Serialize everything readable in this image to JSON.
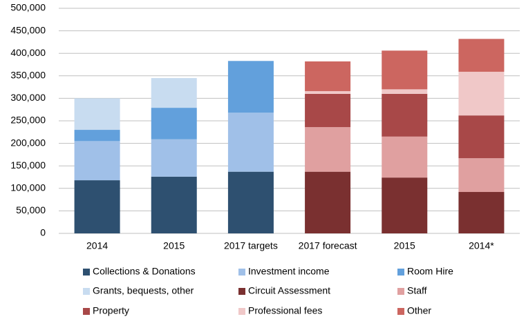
{
  "chart_data": {
    "type": "stacked_bar",
    "categories": [
      "2014",
      "2015",
      "2017 targets",
      "2017 forecast",
      "2015",
      "2014*"
    ],
    "series": [
      {
        "name": "Collections & Donations",
        "color": "#2e5070",
        "values": [
          118000,
          126000,
          137000,
          null,
          null,
          null
        ]
      },
      {
        "name": "Investment income",
        "color": "#a0c0e8",
        "values": [
          87000,
          83000,
          131000,
          null,
          null,
          null
        ]
      },
      {
        "name": "Room Hire",
        "color": "#62a0dc",
        "values": [
          25000,
          70000,
          115000,
          null,
          null,
          null
        ]
      },
      {
        "name": "Grants, bequests, other",
        "color": "#c8dcf0",
        "values": [
          70000,
          66000,
          null,
          null,
          null,
          null
        ]
      },
      {
        "name": "Circuit Assessment",
        "color": "#7a3030",
        "values": [
          null,
          null,
          null,
          137000,
          124000,
          92000
        ]
      },
      {
        "name": "Staff",
        "color": "#e0a0a0",
        "values": [
          null,
          null,
          null,
          99000,
          91000,
          75000
        ]
      },
      {
        "name": "Property",
        "color": "#a84848",
        "values": [
          null,
          null,
          null,
          74000,
          95000,
          95000
        ]
      },
      {
        "name": "Professional fees",
        "color": "#f0c8c8",
        "values": [
          null,
          null,
          null,
          6000,
          10000,
          97000
        ]
      },
      {
        "name": "Other",
        "color": "#cc6660",
        "values": [
          null,
          null,
          null,
          66000,
          86000,
          73000
        ]
      }
    ],
    "ylim": [
      0,
      500000
    ],
    "yticks": [
      0,
      {
        "value": 50000,
        "label": "50,000"
      },
      {
        "value": 100000,
        "label": "100,000"
      },
      {
        "value": 150000,
        "label": "150,000"
      },
      {
        "value": 200000,
        "label": "200,000"
      },
      {
        "value": 250000,
        "label": "250,000"
      },
      {
        "value": 300000,
        "label": "300,000"
      },
      {
        "value": 350000,
        "label": "350,000"
      },
      {
        "value": 400000,
        "label": "400,000"
      },
      {
        "value": 450000,
        "label": "450,000"
      },
      {
        "value": 500000,
        "label": "500,000"
      }
    ],
    "grid": true
  }
}
